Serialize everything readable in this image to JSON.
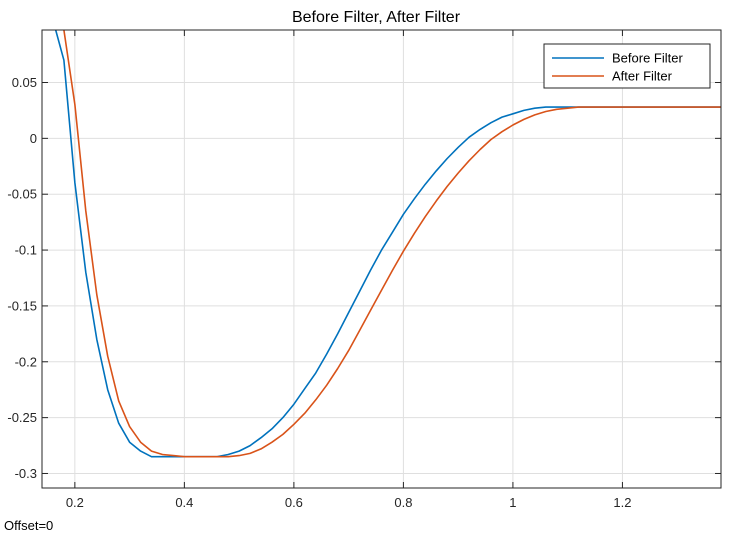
{
  "offset_text": "Offset=0",
  "chart_data": {
    "type": "line",
    "title": "Before Filter, After Filter",
    "xlabel": "",
    "ylabel": "",
    "xlim": [
      0.14,
      1.38
    ],
    "ylim": [
      -0.313,
      0.097
    ],
    "xticks": [
      0.2,
      0.4,
      0.6,
      0.8,
      1.0,
      1.2
    ],
    "xtick_labels": [
      "0.2",
      "0.4",
      "0.6",
      "0.8",
      "1",
      "1.2"
    ],
    "yticks": [
      0.05,
      0,
      -0.05,
      -0.1,
      -0.15,
      -0.2,
      -0.25,
      -0.3
    ],
    "ytick_labels": [
      "0.05",
      "0",
      "-0.05",
      "-0.1",
      "-0.15",
      "-0.2",
      "-0.25",
      "-0.3"
    ],
    "grid": true,
    "legend_position": "top-right",
    "series": [
      {
        "name": "Before Filter",
        "color": "#0072BD",
        "x": [
          0.165,
          0.18,
          0.2,
          0.22,
          0.24,
          0.26,
          0.28,
          0.3,
          0.32,
          0.34,
          0.36,
          0.38,
          0.4,
          0.42,
          0.44,
          0.46,
          0.48,
          0.5,
          0.52,
          0.54,
          0.56,
          0.58,
          0.6,
          0.62,
          0.64,
          0.66,
          0.68,
          0.7,
          0.72,
          0.74,
          0.76,
          0.78,
          0.8,
          0.82,
          0.84,
          0.86,
          0.88,
          0.9,
          0.92,
          0.94,
          0.96,
          0.98,
          1.0,
          1.02,
          1.04,
          1.06,
          1.08,
          1.1,
          1.15,
          1.2,
          1.3,
          1.38
        ],
        "y": [
          0.097,
          0.07,
          -0.04,
          -0.12,
          -0.18,
          -0.225,
          -0.255,
          -0.272,
          -0.28,
          -0.285,
          -0.285,
          -0.285,
          -0.285,
          -0.285,
          -0.285,
          -0.285,
          -0.283,
          -0.28,
          -0.275,
          -0.268,
          -0.26,
          -0.25,
          -0.238,
          -0.224,
          -0.21,
          -0.193,
          -0.175,
          -0.156,
          -0.137,
          -0.118,
          -0.1,
          -0.084,
          -0.068,
          -0.054,
          -0.041,
          -0.029,
          -0.018,
          -0.008,
          0.001,
          0.008,
          0.014,
          0.019,
          0.022,
          0.025,
          0.027,
          0.028,
          0.028,
          0.028,
          0.028,
          0.028,
          0.028,
          0.028
        ]
      },
      {
        "name": "After Filter",
        "color": "#D95319",
        "x": [
          0.18,
          0.2,
          0.22,
          0.24,
          0.26,
          0.28,
          0.3,
          0.32,
          0.34,
          0.36,
          0.38,
          0.4,
          0.42,
          0.44,
          0.46,
          0.48,
          0.5,
          0.52,
          0.54,
          0.56,
          0.58,
          0.6,
          0.62,
          0.64,
          0.66,
          0.68,
          0.7,
          0.72,
          0.74,
          0.76,
          0.78,
          0.8,
          0.82,
          0.84,
          0.86,
          0.88,
          0.9,
          0.92,
          0.94,
          0.96,
          0.98,
          1.0,
          1.02,
          1.04,
          1.06,
          1.08,
          1.1,
          1.12,
          1.15,
          1.2,
          1.3,
          1.38
        ],
        "y": [
          0.097,
          0.03,
          -0.065,
          -0.14,
          -0.195,
          -0.235,
          -0.258,
          -0.272,
          -0.28,
          -0.283,
          -0.284,
          -0.285,
          -0.285,
          -0.285,
          -0.285,
          -0.285,
          -0.284,
          -0.282,
          -0.278,
          -0.272,
          -0.265,
          -0.256,
          -0.246,
          -0.234,
          -0.221,
          -0.206,
          -0.19,
          -0.172,
          -0.154,
          -0.136,
          -0.118,
          -0.101,
          -0.085,
          -0.07,
          -0.056,
          -0.043,
          -0.031,
          -0.02,
          -0.01,
          -0.001,
          0.006,
          0.012,
          0.017,
          0.021,
          0.024,
          0.026,
          0.027,
          0.028,
          0.028,
          0.028,
          0.028,
          0.028
        ]
      }
    ]
  }
}
